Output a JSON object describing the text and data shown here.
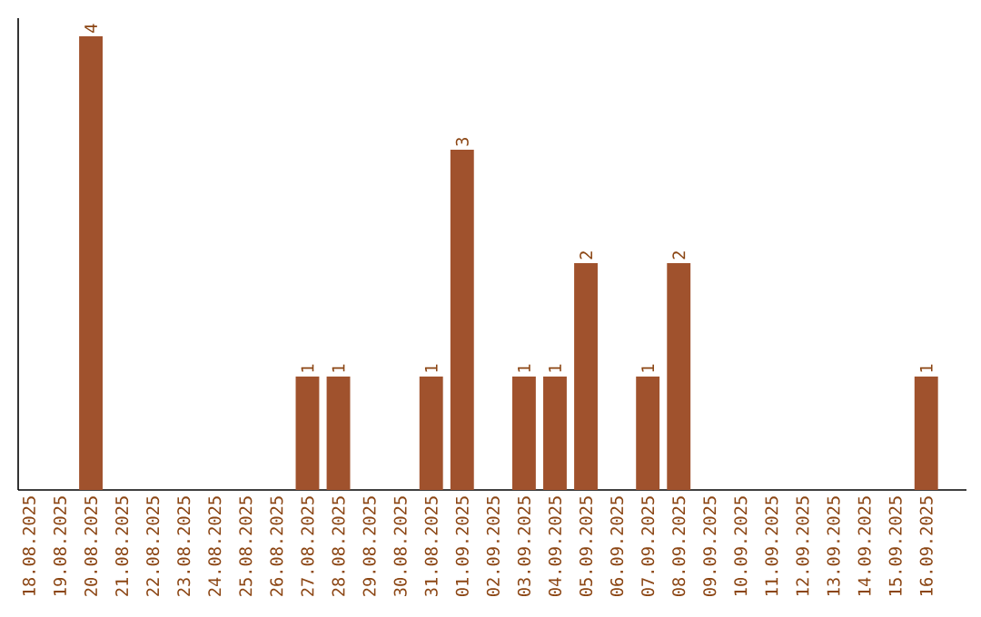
{
  "chart_data": {
    "type": "bar",
    "categories": [
      "18.08.2025",
      "19.08.2025",
      "20.08.2025",
      "21.08.2025",
      "22.08.2025",
      "23.08.2025",
      "24.08.2025",
      "25.08.2025",
      "26.08.2025",
      "27.08.2025",
      "28.08.2025",
      "29.08.2025",
      "30.08.2025",
      "31.08.2025",
      "01.09.2025",
      "02.09.2025",
      "03.09.2025",
      "04.09.2025",
      "05.09.2025",
      "06.09.2025",
      "07.09.2025",
      "08.09.2025",
      "09.09.2025",
      "10.09.2025",
      "11.09.2025",
      "12.09.2025",
      "13.09.2025",
      "14.09.2025",
      "15.09.2025",
      "16.09.2025"
    ],
    "values": [
      0,
      0,
      4,
      0,
      0,
      0,
      0,
      0,
      0,
      1,
      1,
      0,
      0,
      1,
      3,
      0,
      1,
      1,
      2,
      0,
      1,
      2,
      0,
      0,
      0,
      0,
      0,
      0,
      0,
      1
    ],
    "value_labels": [
      null,
      null,
      "4",
      null,
      null,
      null,
      null,
      null,
      null,
      "1",
      "1",
      null,
      null,
      "1",
      "3",
      null,
      "1",
      "1",
      "2",
      null,
      "1",
      "2",
      null,
      null,
      null,
      null,
      null,
      null,
      null,
      "1"
    ],
    "color": "#a0522d",
    "tick_labels": "x"
  }
}
